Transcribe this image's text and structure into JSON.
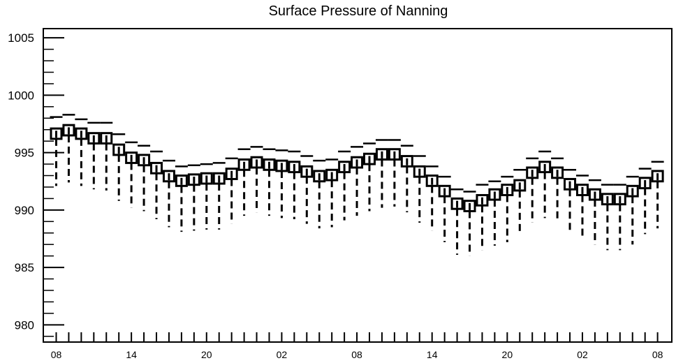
{
  "chart_data": {
    "type": "box",
    "title": "Surface Pressure of Nanning",
    "xlabel": "",
    "ylabel": "",
    "ylim": [
      978.5,
      1005.8
    ],
    "yticks": [
      980,
      985,
      990,
      995,
      1000,
      1005
    ],
    "xtick_labels": [
      "08",
      "14",
      "20",
      "02",
      "08",
      "14",
      "20",
      "02",
      "08"
    ],
    "xtick_positions": [
      0,
      6,
      12,
      18,
      24,
      30,
      36,
      42,
      48
    ],
    "grid": false,
    "boxes": [
      {
        "t": 0,
        "min": 992.1,
        "q1": 996.2,
        "median": 996.6,
        "q3": 997.1,
        "max": 998.1
      },
      {
        "t": 1,
        "min": 992.4,
        "q1": 996.5,
        "median": 996.9,
        "q3": 997.4,
        "max": 998.3
      },
      {
        "t": 2,
        "min": 992.1,
        "q1": 996.2,
        "median": 996.6,
        "q3": 997.1,
        "max": 997.9
      },
      {
        "t": 3,
        "min": 991.8,
        "q1": 995.8,
        "median": 996.2,
        "q3": 996.7,
        "max": 997.6
      },
      {
        "t": 4,
        "min": 991.7,
        "q1": 995.8,
        "median": 996.2,
        "q3": 996.7,
        "max": 997.6
      },
      {
        "t": 5,
        "min": 990.8,
        "q1": 994.8,
        "median": 995.2,
        "q3": 995.7,
        "max": 996.6
      },
      {
        "t": 6,
        "min": 990.2,
        "q1": 994.1,
        "median": 994.5,
        "q3": 995.0,
        "max": 995.9
      },
      {
        "t": 7,
        "min": 989.9,
        "q1": 993.9,
        "median": 994.3,
        "q3": 994.8,
        "max": 995.6
      },
      {
        "t": 8,
        "min": 989.2,
        "q1": 993.2,
        "median": 993.6,
        "q3": 994.1,
        "max": 995.1
      },
      {
        "t": 9,
        "min": 988.5,
        "q1": 992.5,
        "median": 992.9,
        "q3": 993.4,
        "max": 994.3
      },
      {
        "t": 10,
        "min": 988.1,
        "q1": 992.1,
        "median": 992.5,
        "q3": 993.0,
        "max": 993.8
      },
      {
        "t": 11,
        "min": 988.2,
        "q1": 992.2,
        "median": 992.6,
        "q3": 993.1,
        "max": 993.9
      },
      {
        "t": 12,
        "min": 988.3,
        "q1": 992.3,
        "median": 992.7,
        "q3": 993.2,
        "max": 994.0
      },
      {
        "t": 13,
        "min": 988.3,
        "q1": 992.3,
        "median": 992.7,
        "q3": 993.2,
        "max": 994.1
      },
      {
        "t": 14,
        "min": 988.8,
        "q1": 992.7,
        "median": 993.1,
        "q3": 993.6,
        "max": 994.5
      },
      {
        "t": 15,
        "min": 989.5,
        "q1": 993.5,
        "median": 993.9,
        "q3": 994.4,
        "max": 995.3
      },
      {
        "t": 16,
        "min": 989.8,
        "q1": 993.7,
        "median": 994.1,
        "q3": 994.6,
        "max": 995.5
      },
      {
        "t": 17,
        "min": 989.5,
        "q1": 993.5,
        "median": 993.9,
        "q3": 994.4,
        "max": 995.3
      },
      {
        "t": 18,
        "min": 989.3,
        "q1": 993.4,
        "median": 993.8,
        "q3": 994.3,
        "max": 995.2
      },
      {
        "t": 19,
        "min": 989.2,
        "q1": 993.3,
        "median": 993.7,
        "q3": 994.2,
        "max": 995.1
      },
      {
        "t": 20,
        "min": 988.8,
        "q1": 992.9,
        "median": 993.3,
        "q3": 993.8,
        "max": 994.7
      },
      {
        "t": 21,
        "min": 988.4,
        "q1": 992.5,
        "median": 992.9,
        "q3": 993.4,
        "max": 994.3
      },
      {
        "t": 22,
        "min": 988.5,
        "q1": 992.6,
        "median": 993.0,
        "q3": 993.5,
        "max": 994.4
      },
      {
        "t": 23,
        "min": 989.1,
        "q1": 993.3,
        "median": 993.7,
        "q3": 994.2,
        "max": 995.1
      },
      {
        "t": 24,
        "min": 989.5,
        "q1": 993.7,
        "median": 994.1,
        "q3": 994.6,
        "max": 995.5
      },
      {
        "t": 25,
        "min": 989.9,
        "q1": 994.0,
        "median": 994.4,
        "q3": 994.9,
        "max": 995.8
      },
      {
        "t": 26,
        "min": 990.2,
        "q1": 994.4,
        "median": 994.8,
        "q3": 995.3,
        "max": 996.1
      },
      {
        "t": 27,
        "min": 990.3,
        "q1": 994.4,
        "median": 994.8,
        "q3": 995.3,
        "max": 996.1
      },
      {
        "t": 28,
        "min": 989.8,
        "q1": 993.8,
        "median": 994.2,
        "q3": 994.7,
        "max": 995.6
      },
      {
        "t": 29,
        "min": 988.9,
        "q1": 992.9,
        "median": 993.3,
        "q3": 993.8,
        "max": 994.7
      },
      {
        "t": 30,
        "min": 988.2,
        "q1": 992.1,
        "median": 992.5,
        "q3": 993.0,
        "max": 993.8
      },
      {
        "t": 31,
        "min": 987.2,
        "q1": 991.2,
        "median": 991.6,
        "q3": 992.1,
        "max": 992.9
      },
      {
        "t": 32,
        "min": 986.1,
        "q1": 990.1,
        "median": 990.5,
        "q3": 991.0,
        "max": 991.8
      },
      {
        "t": 33,
        "min": 986.0,
        "q1": 989.9,
        "median": 990.3,
        "q3": 990.8,
        "max": 991.6
      },
      {
        "t": 34,
        "min": 986.5,
        "q1": 990.4,
        "median": 990.8,
        "q3": 991.3,
        "max": 992.2
      },
      {
        "t": 35,
        "min": 986.9,
        "q1": 990.9,
        "median": 991.3,
        "q3": 991.8,
        "max": 992.5
      },
      {
        "t": 36,
        "min": 987.2,
        "q1": 991.3,
        "median": 991.7,
        "q3": 992.2,
        "max": 992.9
      },
      {
        "t": 37,
        "min": 987.9,
        "q1": 991.7,
        "median": 992.1,
        "q3": 992.6,
        "max": 993.5
      },
      {
        "t": 38,
        "min": 988.9,
        "q1": 992.8,
        "median": 993.2,
        "q3": 993.7,
        "max": 994.5
      },
      {
        "t": 39,
        "min": 989.3,
        "q1": 993.3,
        "median": 993.7,
        "q3": 994.2,
        "max": 995.1
      },
      {
        "t": 40,
        "min": 989.0,
        "q1": 992.8,
        "median": 993.2,
        "q3": 993.7,
        "max": 994.5
      },
      {
        "t": 41,
        "min": 988.1,
        "q1": 991.8,
        "median": 992.2,
        "q3": 992.7,
        "max": 993.5
      },
      {
        "t": 42,
        "min": 987.5,
        "q1": 991.3,
        "median": 991.7,
        "q3": 992.2,
        "max": 993.0
      },
      {
        "t": 43,
        "min": 987.0,
        "q1": 990.9,
        "median": 991.3,
        "q3": 991.8,
        "max": 992.6
      },
      {
        "t": 44,
        "min": 986.5,
        "q1": 990.5,
        "median": 990.9,
        "q3": 991.4,
        "max": 992.2
      },
      {
        "t": 45,
        "min": 986.5,
        "q1": 990.5,
        "median": 990.9,
        "q3": 991.4,
        "max": 992.2
      },
      {
        "t": 46,
        "min": 987.0,
        "q1": 991.2,
        "median": 991.6,
        "q3": 992.1,
        "max": 992.9
      },
      {
        "t": 47,
        "min": 987.9,
        "q1": 991.9,
        "median": 992.3,
        "q3": 992.8,
        "max": 993.6
      },
      {
        "t": 48,
        "min": 988.4,
        "q1": 992.5,
        "median": 992.9,
        "q3": 993.4,
        "max": 994.2
      }
    ]
  },
  "colors": {
    "axis": "#000000",
    "box": "#000000",
    "background": "#ffffff"
  }
}
